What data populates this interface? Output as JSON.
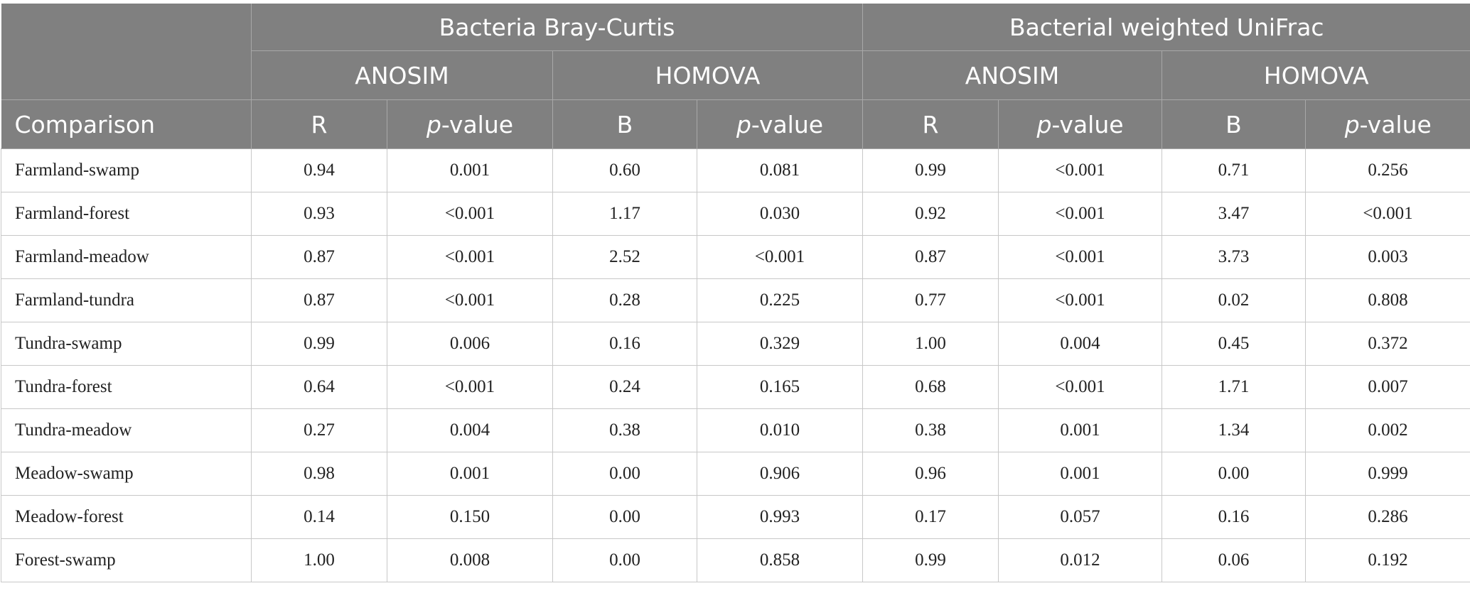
{
  "header": {
    "group1": "Bacteria Bray-Curtis",
    "group2": "Bacterial weighted UniFrac",
    "anosim": "ANOSIM",
    "homova": "HOMOVA",
    "comparison": "Comparison",
    "r": "R",
    "b": "B",
    "p_italic": "p",
    "p_rest": "-value"
  },
  "rows": [
    {
      "label": "Farmland-swamp",
      "v": [
        "0.94",
        "0.001",
        "0.60",
        "0.081",
        "0.99",
        "<0.001",
        "0.71",
        "0.256"
      ]
    },
    {
      "label": "Farmland-forest",
      "v": [
        "0.93",
        "<0.001",
        "1.17",
        "0.030",
        "0.92",
        "<0.001",
        "3.47",
        "<0.001"
      ]
    },
    {
      "label": "Farmland-meadow",
      "v": [
        "0.87",
        "<0.001",
        "2.52",
        "<0.001",
        "0.87",
        "<0.001",
        "3.73",
        "0.003"
      ]
    },
    {
      "label": "Farmland-tundra",
      "v": [
        "0.87",
        "<0.001",
        "0.28",
        "0.225",
        "0.77",
        "<0.001",
        "0.02",
        "0.808"
      ]
    },
    {
      "label": "Tundra-swamp",
      "v": [
        "0.99",
        "0.006",
        "0.16",
        "0.329",
        "1.00",
        "0.004",
        "0.45",
        "0.372"
      ]
    },
    {
      "label": "Tundra-forest",
      "v": [
        "0.64",
        "<0.001",
        "0.24",
        "0.165",
        "0.68",
        "<0.001",
        "1.71",
        "0.007"
      ]
    },
    {
      "label": "Tundra-meadow",
      "v": [
        "0.27",
        "0.004",
        "0.38",
        "0.010",
        "0.38",
        "0.001",
        "1.34",
        "0.002"
      ]
    },
    {
      "label": "Meadow-swamp",
      "v": [
        "0.98",
        "0.001",
        "0.00",
        "0.906",
        "0.96",
        "0.001",
        "0.00",
        "0.999"
      ]
    },
    {
      "label": "Meadow-forest",
      "v": [
        "0.14",
        "0.150",
        "0.00",
        "0.993",
        "0.17",
        "0.057",
        "0.16",
        "0.286"
      ]
    },
    {
      "label": "Forest-swamp",
      "v": [
        "1.00",
        "0.008",
        "0.00",
        "0.858",
        "0.99",
        "0.012",
        "0.06",
        "0.192"
      ]
    }
  ]
}
